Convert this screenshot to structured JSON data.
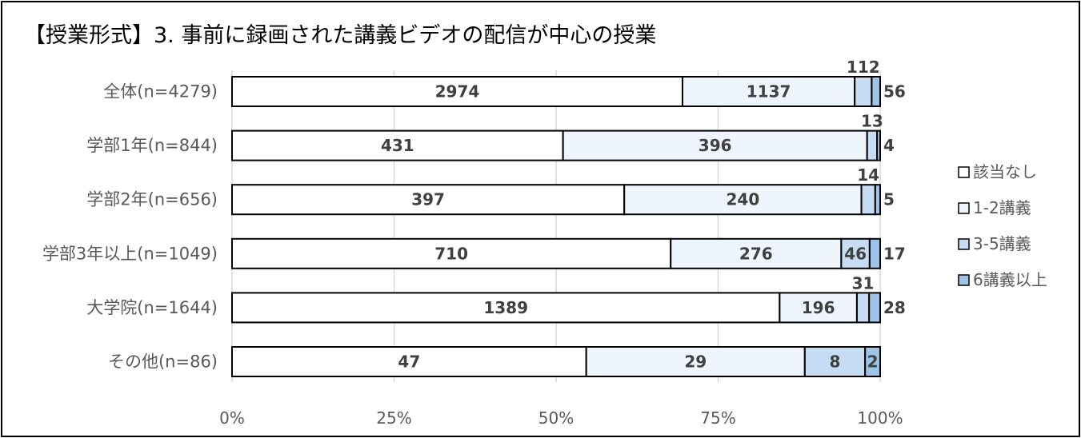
{
  "chart_data": {
    "type": "bar",
    "orientation": "horizontal",
    "stacked": "percent",
    "title": "【授業形式】3. 事前に録画された講義ビデオの配信が中心の授業",
    "categories": [
      "全体(n=4279)",
      "学部1年(n=844)",
      "学部2年(n=656)",
      "学部3年以上(n=1049)",
      "大学院(n=1644)",
      "その他(n=86)"
    ],
    "series": [
      {
        "name": "該当なし",
        "color": "#ffffff",
        "values": [
          2974,
          431,
          397,
          710,
          1389,
          47
        ]
      },
      {
        "name": "1-2講義",
        "color": "#eef5fc",
        "values": [
          1137,
          396,
          240,
          276,
          196,
          29
        ]
      },
      {
        "name": "3-5講義",
        "color": "#c5dcf2",
        "values": [
          112,
          13,
          14,
          46,
          31,
          8
        ]
      },
      {
        "name": "6講義以上",
        "color": "#9dc3e6",
        "values": [
          56,
          4,
          5,
          17,
          28,
          2
        ]
      }
    ],
    "xlim": [
      0,
      100
    ],
    "xticks": [
      "0%",
      "25%",
      "50%",
      "75%",
      "100%"
    ],
    "grid": true,
    "legend": "right"
  }
}
